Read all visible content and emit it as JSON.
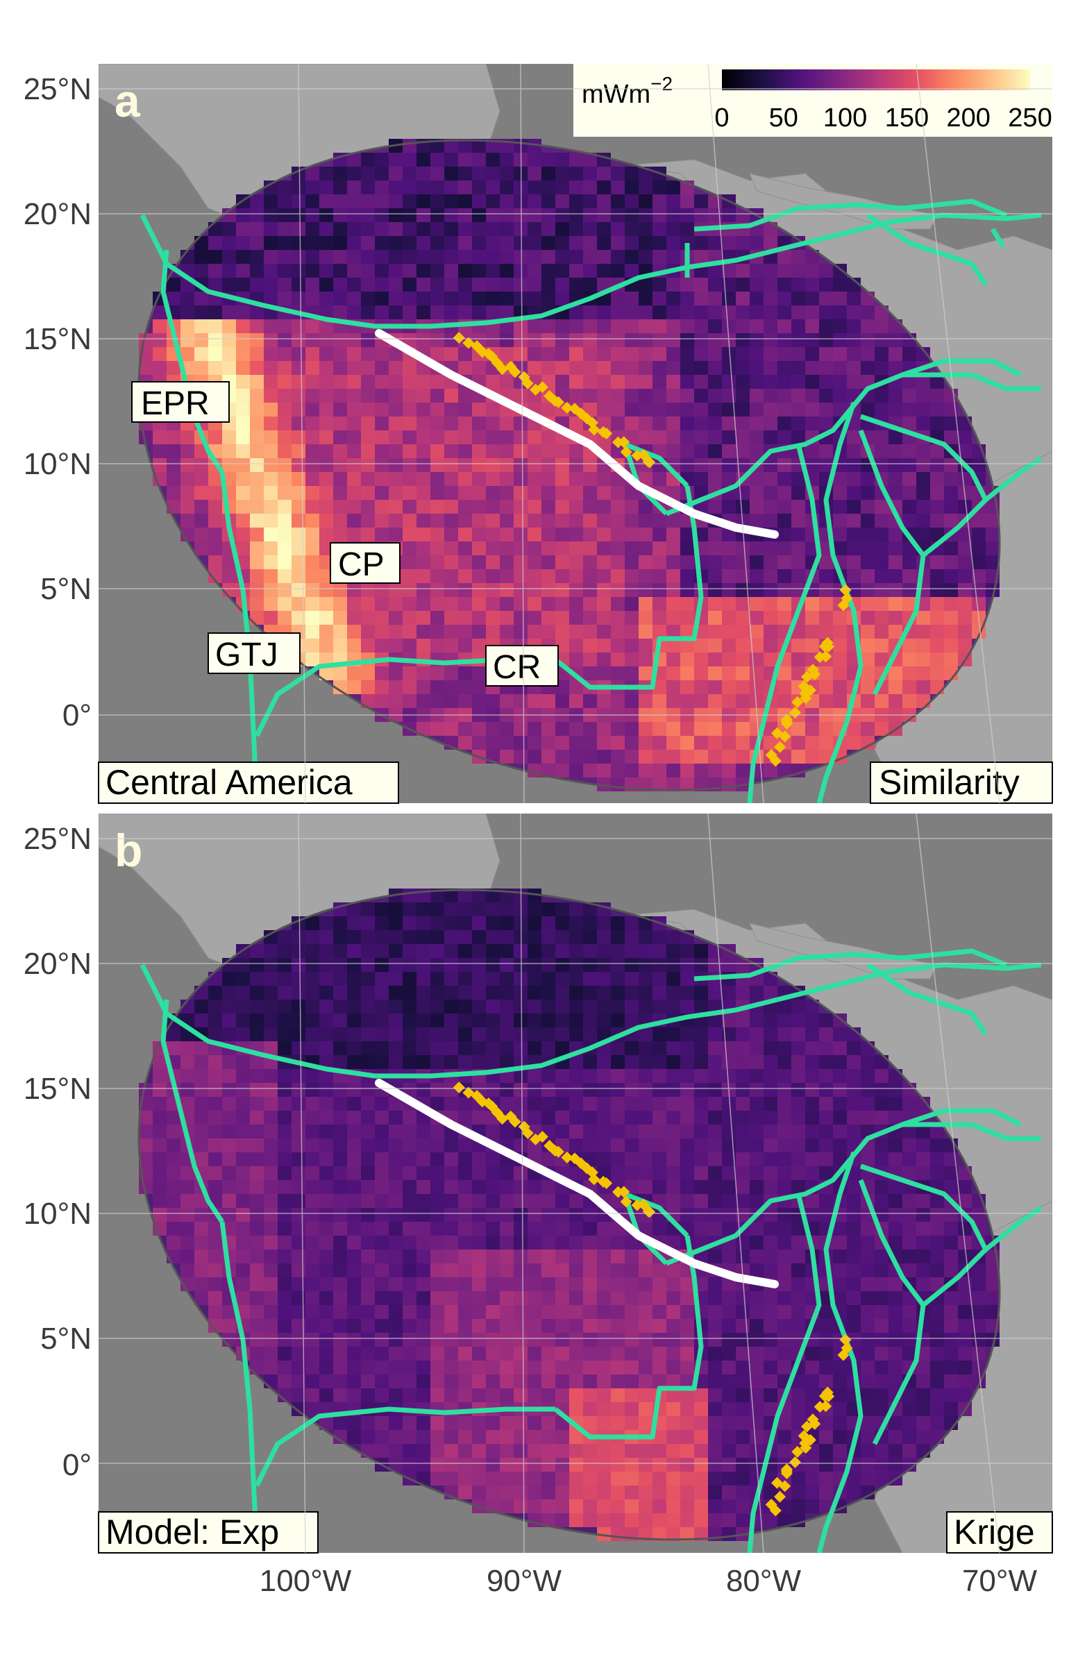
{
  "figure": {
    "panels": [
      {
        "letter": "a",
        "region_label": "Central America",
        "method_label": "Similarity",
        "annotations": [
          "EPR",
          "CP",
          "GTJ",
          "CR"
        ]
      },
      {
        "letter": "b",
        "region_label": "Model: Exp",
        "method_label": "Krige"
      }
    ],
    "colorbar": {
      "unit": "mWm",
      "unit_exp": "−2",
      "ticks": [
        "0",
        "50",
        "100",
        "150",
        "200",
        "250"
      ]
    },
    "lat_ticks": [
      "25°N",
      "20°N",
      "15°N",
      "10°N",
      "5°N",
      "0°"
    ],
    "lon_ticks": [
      "100°W",
      "90°W",
      "80°W",
      "70°W"
    ],
    "colors": {
      "ocean": "#7f7f7f",
      "land": "#a6a6a6",
      "plate_boundary": "#2ee0a0",
      "volcano": "#f5c400",
      "profile": "#ffffff",
      "label_bg": "#fffff0"
    }
  },
  "chart_data": {
    "type": "heatmap",
    "value_unit": "mW m^-2",
    "color_range": [
      0,
      250
    ],
    "lat_range": [
      -3,
      26
    ],
    "lon_range": [
      -109,
      -67
    ]
  }
}
